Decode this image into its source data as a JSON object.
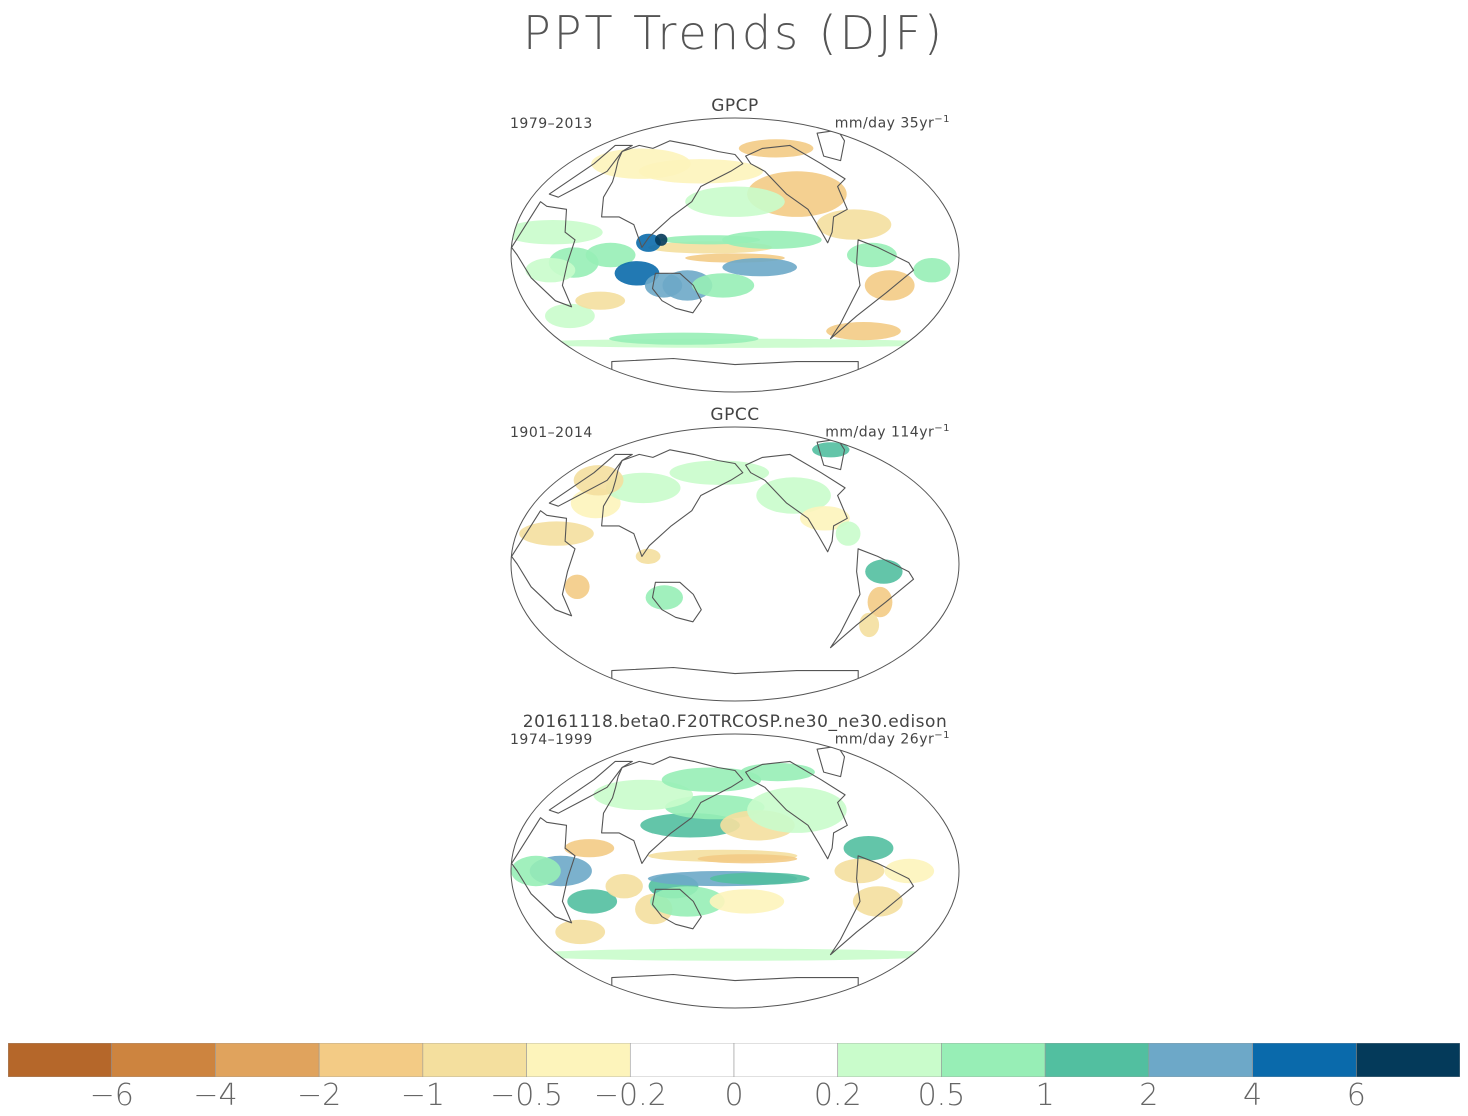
{
  "title": "PPT Trends (DJF)",
  "panels": [
    {
      "title": "GPCP",
      "period": "1979–2013",
      "units": "mm/day 35yr",
      "units_exp": "−1"
    },
    {
      "title": "GPCC",
      "period": "1901–2014",
      "units": "mm/day 114yr",
      "units_exp": "−1"
    },
    {
      "title": "20161118.beta0.F20TRCOSP.ne30_ne30.edison",
      "period": "1974–1999",
      "units": "mm/day 26yr",
      "units_exp": "−1"
    }
  ],
  "colorbar": {
    "colors": [
      "#b5672a",
      "#cd843f",
      "#e0a35d",
      "#f3cb85",
      "#f4df9e",
      "#fdf4bb",
      "#ffffff",
      "#ffffff",
      "#c9fccb",
      "#97eeb6",
      "#52bfa0",
      "#6da8c8",
      "#0a6aab",
      "#043a5a"
    ],
    "labels": [
      "−6",
      "−4",
      "−2",
      "−1",
      "−0.5",
      "−0.2",
      "0",
      "0.2",
      "0.5",
      "1",
      "2",
      "4",
      "6"
    ]
  },
  "chart_data": {
    "type": "heatmap",
    "title": "PPT Trends (DJF)",
    "projection": "robinson",
    "maps": [
      {
        "name": "GPCP",
        "period": "1979–2013",
        "units": "mm/day 35yr⁻¹"
      },
      {
        "name": "GPCC",
        "period": "1901–2014",
        "units": "mm/day 114yr⁻¹"
      },
      {
        "name": "20161118.beta0.F20TRCOSP.ne30_ne30.edison",
        "period": "1974–1999",
        "units": "mm/day 26yr⁻¹"
      }
    ],
    "color_levels": [
      -6,
      -4,
      -2,
      -1,
      -0.5,
      -0.2,
      0,
      0.2,
      0.5,
      1,
      2,
      4,
      6
    ]
  }
}
